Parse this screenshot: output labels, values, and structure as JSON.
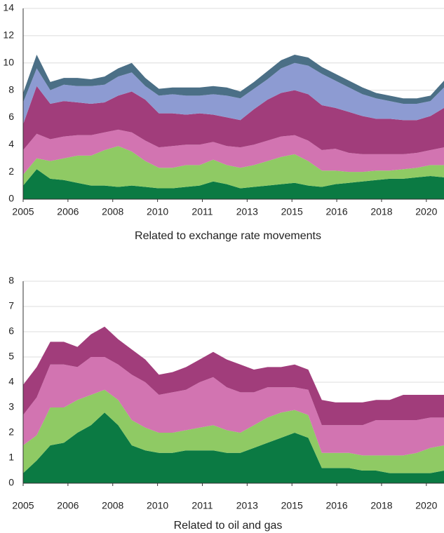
{
  "chart_data": [
    {
      "type": "stacked_area",
      "xlabel": "Related to exchange rate movements",
      "x": [
        2005,
        2005.5,
        2006,
        2006.5,
        2007,
        2007.5,
        2008,
        2008.5,
        2009,
        2009.5,
        2010,
        2010.5,
        2011,
        2011.5,
        2012,
        2012.5,
        2013,
        2013.5,
        2014,
        2014.5,
        2015,
        2015.5,
        2016,
        2016.5,
        2017,
        2017.5,
        2018,
        2018.5,
        2019,
        2019.5,
        2020,
        2020.5
      ],
      "xlim": [
        2005,
        2020.5
      ],
      "xticks": [
        {
          "value": 2005,
          "label": "2005"
        },
        {
          "value": 2006.65,
          "label": "2006"
        },
        {
          "value": 2008.3,
          "label": "2008"
        },
        {
          "value": 2009.95,
          "label": "2010"
        },
        {
          "value": 2011.6,
          "label": "2011"
        },
        {
          "value": 2013.25,
          "label": "2013"
        },
        {
          "value": 2014.9,
          "label": "2015"
        },
        {
          "value": 2016.55,
          "label": "2016"
        },
        {
          "value": 2018.2,
          "label": "2018"
        },
        {
          "value": 2019.85,
          "label": "2020"
        }
      ],
      "ylim": [
        0,
        14
      ],
      "yticks": [
        0,
        2,
        4,
        6,
        8,
        10,
        12,
        14
      ],
      "grid": true,
      "series": [
        {
          "color": "#0b7a43",
          "values": [
            1.0,
            2.2,
            1.5,
            1.4,
            1.2,
            1.0,
            1.0,
            0.9,
            1.0,
            0.9,
            0.8,
            0.8,
            0.9,
            1.0,
            1.3,
            1.1,
            0.8,
            0.9,
            1.0,
            1.1,
            1.2,
            1.0,
            0.9,
            1.1,
            1.2,
            1.3,
            1.4,
            1.5,
            1.5,
            1.6,
            1.7,
            1.6
          ]
        },
        {
          "color": "#8fca64",
          "values": [
            0.8,
            0.8,
            1.3,
            1.6,
            2.0,
            2.2,
            2.6,
            3.0,
            2.5,
            1.9,
            1.5,
            1.5,
            1.6,
            1.5,
            1.6,
            1.4,
            1.5,
            1.6,
            1.8,
            2.0,
            2.1,
            1.8,
            1.2,
            1.0,
            0.8,
            0.7,
            0.7,
            0.6,
            0.7,
            0.7,
            0.8,
            0.9
          ]
        },
        {
          "color": "#d274b1",
          "values": [
            1.8,
            1.8,
            1.6,
            1.6,
            1.5,
            1.5,
            1.3,
            1.2,
            1.4,
            1.5,
            1.5,
            1.6,
            1.5,
            1.5,
            1.3,
            1.4,
            1.5,
            1.5,
            1.5,
            1.5,
            1.4,
            1.5,
            1.5,
            1.6,
            1.4,
            1.3,
            1.2,
            1.2,
            1.1,
            1.1,
            1.1,
            1.3
          ]
        },
        {
          "color": "#a13d7b",
          "values": [
            1.9,
            3.5,
            2.6,
            2.6,
            2.4,
            2.3,
            2.2,
            2.5,
            3.0,
            3.0,
            2.5,
            2.4,
            2.2,
            2.3,
            2.0,
            2.1,
            2.0,
            2.6,
            3.0,
            3.2,
            3.3,
            3.4,
            3.3,
            3.0,
            3.0,
            2.8,
            2.6,
            2.6,
            2.5,
            2.4,
            2.5,
            2.9
          ]
        },
        {
          "color": "#8d9bd2",
          "values": [
            1.6,
            1.3,
            1.0,
            1.2,
            1.2,
            1.3,
            1.3,
            1.4,
            1.4,
            1.0,
            1.3,
            1.4,
            1.4,
            1.3,
            1.5,
            1.6,
            1.6,
            1.5,
            1.5,
            1.8,
            2.0,
            2.1,
            2.3,
            2.0,
            1.8,
            1.6,
            1.5,
            1.3,
            1.2,
            1.2,
            1.1,
            1.5
          ]
        },
        {
          "color": "#4b6f86",
          "values": [
            0.7,
            1.0,
            0.6,
            0.5,
            0.6,
            0.5,
            0.6,
            0.6,
            0.7,
            0.6,
            0.5,
            0.5,
            0.6,
            0.6,
            0.6,
            0.6,
            0.5,
            0.5,
            0.6,
            0.6,
            0.6,
            0.6,
            0.5,
            0.5,
            0.5,
            0.5,
            0.4,
            0.4,
            0.4,
            0.4,
            0.4,
            0.5
          ]
        }
      ]
    },
    {
      "type": "stacked_area",
      "xlabel": "Related to oil and gas",
      "x": [
        2005,
        2005.5,
        2006,
        2006.5,
        2007,
        2007.5,
        2008,
        2008.5,
        2009,
        2009.5,
        2010,
        2010.5,
        2011,
        2011.5,
        2012,
        2012.5,
        2013,
        2013.5,
        2014,
        2014.5,
        2015,
        2015.5,
        2016,
        2016.5,
        2017,
        2017.5,
        2018,
        2018.5,
        2019,
        2019.5,
        2020,
        2020.5
      ],
      "xlim": [
        2005,
        2020.5
      ],
      "xticks": [
        {
          "value": 2005,
          "label": "2005"
        },
        {
          "value": 2006.65,
          "label": "2006"
        },
        {
          "value": 2008.3,
          "label": "2008"
        },
        {
          "value": 2009.95,
          "label": "2010"
        },
        {
          "value": 2011.6,
          "label": "2011"
        },
        {
          "value": 2013.25,
          "label": "2013"
        },
        {
          "value": 2014.9,
          "label": "2015"
        },
        {
          "value": 2016.55,
          "label": "2016"
        },
        {
          "value": 2018.2,
          "label": "2018"
        },
        {
          "value": 2019.85,
          "label": "2020"
        }
      ],
      "ylim": [
        0,
        8
      ],
      "yticks": [
        0,
        1,
        2,
        3,
        4,
        5,
        6,
        7,
        8
      ],
      "grid": true,
      "series": [
        {
          "color": "#0b7a43",
          "values": [
            0.4,
            0.9,
            1.5,
            1.6,
            2.0,
            2.3,
            2.8,
            2.3,
            1.5,
            1.3,
            1.2,
            1.2,
            1.3,
            1.3,
            1.3,
            1.2,
            1.2,
            1.4,
            1.6,
            1.8,
            2.0,
            1.8,
            0.6,
            0.6,
            0.6,
            0.5,
            0.5,
            0.4,
            0.4,
            0.4,
            0.4,
            0.5
          ]
        },
        {
          "color": "#8fca64",
          "values": [
            1.1,
            1.0,
            1.5,
            1.4,
            1.3,
            1.2,
            0.9,
            1.0,
            1.0,
            0.9,
            0.8,
            0.8,
            0.8,
            0.9,
            1.0,
            0.9,
            0.8,
            0.9,
            1.0,
            1.0,
            0.9,
            0.9,
            0.6,
            0.6,
            0.6,
            0.6,
            0.6,
            0.7,
            0.7,
            0.8,
            1.0,
            1.0
          ]
        },
        {
          "color": "#d274b1",
          "values": [
            1.2,
            1.5,
            1.7,
            1.7,
            1.3,
            1.5,
            1.3,
            1.4,
            1.8,
            1.8,
            1.5,
            1.6,
            1.6,
            1.8,
            1.9,
            1.7,
            1.6,
            1.3,
            1.2,
            1.0,
            0.9,
            1.0,
            1.1,
            1.1,
            1.1,
            1.2,
            1.4,
            1.4,
            1.4,
            1.3,
            1.2,
            1.1
          ]
        },
        {
          "color": "#a13d7b",
          "values": [
            1.2,
            1.2,
            0.9,
            0.9,
            0.8,
            0.9,
            1.2,
            1.0,
            1.0,
            0.9,
            0.8,
            0.8,
            0.9,
            0.9,
            1.0,
            1.1,
            1.1,
            0.9,
            0.8,
            0.8,
            0.9,
            0.8,
            1.0,
            0.9,
            0.9,
            0.9,
            0.8,
            0.8,
            1.0,
            1.0,
            0.9,
            0.9
          ]
        }
      ]
    }
  ]
}
